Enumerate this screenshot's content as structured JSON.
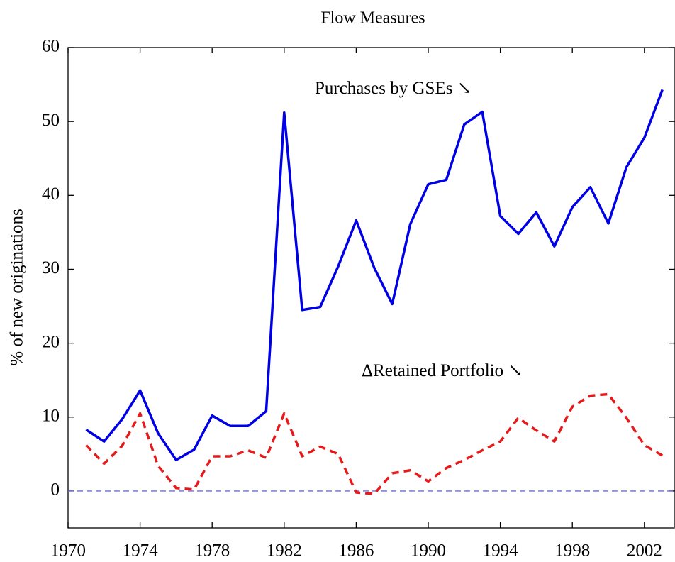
{
  "chart_data": {
    "type": "line",
    "title": "Flow Measures",
    "y_label": "% of new originations",
    "x": [
      1971,
      1972,
      1973,
      1974,
      1975,
      1976,
      1977,
      1978,
      1979,
      1980,
      1981,
      1982,
      1983,
      1984,
      1985,
      1986,
      1987,
      1988,
      1989,
      1990,
      1991,
      1992,
      1993,
      1994,
      1995,
      1996,
      1997,
      1998,
      1999,
      2000,
      2001,
      2002,
      2003
    ],
    "series": [
      {
        "color": "#0000e6",
        "dash": false,
        "values": [
          8.3,
          6.7,
          9.7,
          13.6,
          7.8,
          4.2,
          5.6,
          10.2,
          8.8,
          8.8,
          10.8,
          51.2,
          24.5,
          24.9,
          30.4,
          36.6,
          30.2,
          25.3,
          36.1,
          41.5,
          42.1,
          49.6,
          51.3,
          37.2,
          34.8,
          37.7,
          33.1,
          38.4,
          41.1,
          36.2,
          43.8,
          47.8,
          54.3
        ]
      },
      {
        "color": "#e61a1a",
        "dash": true,
        "values": [
          6.2,
          3.7,
          6.1,
          10.5,
          3.4,
          0.4,
          0.2,
          4.7,
          4.7,
          5.5,
          4.5,
          10.5,
          4.7,
          6.0,
          5.0,
          -0.2,
          -0.4,
          2.4,
          2.8,
          1.3,
          3.1,
          4.2,
          5.5,
          6.7,
          9.9,
          8.2,
          6.7,
          11.4,
          12.9,
          13.1,
          9.9,
          6.2,
          4.8
        ]
      }
    ],
    "annotations": [
      {
        "text": "Purchases by GSEs ↘",
        "x": 1983.7,
        "y": 54.3
      },
      {
        "text": "ΔRetained Portfolio ↘",
        "x": 1986.3,
        "y": 16.1
      }
    ],
    "reference_line": {
      "y": 0,
      "color": "#6666ff"
    },
    "xlim": [
      1970,
      2003.7
    ],
    "ylim": [
      -5,
      60
    ],
    "xticks": [
      1970,
      1974,
      1978,
      1982,
      1986,
      1990,
      1994,
      1998,
      2002
    ],
    "yticks": [
      0,
      10,
      20,
      30,
      40,
      50,
      60
    ]
  }
}
